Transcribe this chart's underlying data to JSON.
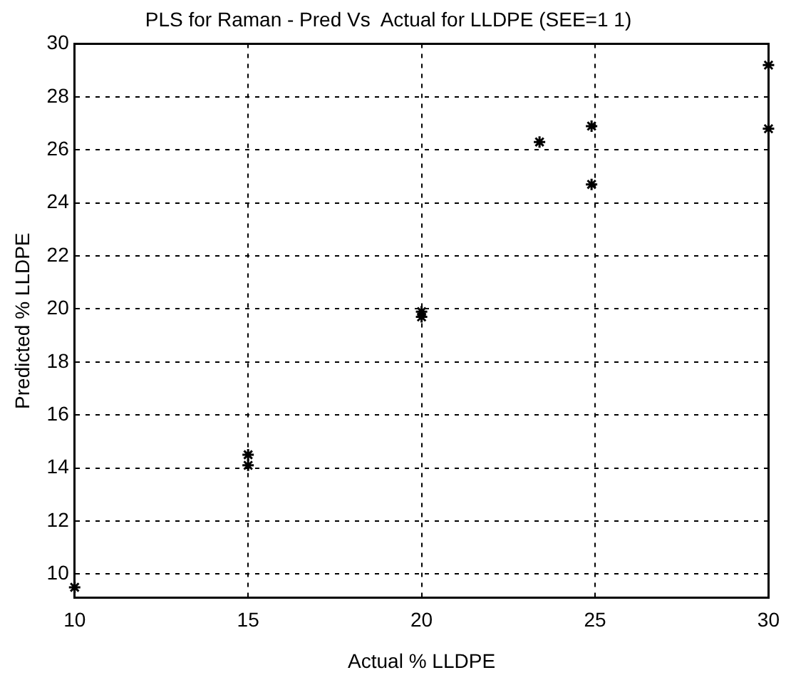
{
  "chart_data": {
    "type": "scatter",
    "title": "PLS for Raman - Pred Vs  Actual for LLDPE (SEE=1 1)",
    "xlabel": "Actual % LLDPE",
    "ylabel": "Predicted % LLDPE",
    "series": [
      {
        "color": "#000000",
        "x": [
          10,
          15,
          15,
          20,
          20,
          23.4,
          24.9,
          24.9,
          30,
          30
        ],
        "values": [
          9.5,
          14.5,
          14.1,
          19.9,
          19.7,
          26.3,
          26.9,
          24.7,
          29.2,
          26.8
        ]
      }
    ],
    "xlim": [
      10,
      30
    ],
    "xticks": [
      10,
      15,
      20,
      25,
      30
    ],
    "ylim": [
      9.1,
      30
    ],
    "yticks": [
      10,
      12,
      14,
      16,
      18,
      20,
      22,
      24,
      26,
      28,
      30
    ],
    "grid": true,
    "legend": false,
    "marker": "cross"
  }
}
